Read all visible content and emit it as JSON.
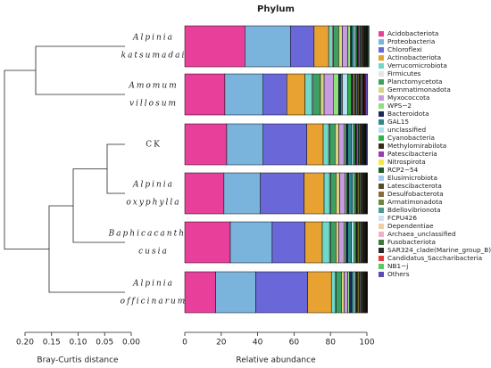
{
  "chart_data": [
    {
      "type": "stacked-barh",
      "title": "Phylum",
      "xlabel": "Relative abundance",
      "categories": [
        [
          "Alpinia",
          "katsumadai"
        ],
        [
          "Amomum",
          "villosum"
        ],
        [
          "CK"
        ],
        [
          "Alpinia",
          "oxyphylla"
        ],
        [
          "Baphicacanthus",
          "cusia"
        ],
        [
          "Alpinia",
          "officinarum"
        ]
      ],
      "xlim": [
        0,
        100
      ],
      "xticks": [
        0,
        20,
        40,
        60,
        80,
        100
      ],
      "series": [
        {
          "name": "Acidobacteriota",
          "color": "#e8409a",
          "values": [
            33,
            22,
            23,
            21.5,
            25,
            17
          ]
        },
        {
          "name": "Proteobacteria",
          "color": "#7ab4dc",
          "values": [
            25,
            21,
            20,
            20,
            23,
            22
          ]
        },
        {
          "name": "Chloroflexi",
          "color": "#6a68d8",
          "values": [
            13,
            13,
            24,
            24,
            18,
            28.5
          ]
        },
        {
          "name": "Actinobacteriota",
          "color": "#e8a232",
          "values": [
            8,
            10,
            9,
            11,
            9.5,
            13
          ]
        },
        {
          "name": "Verrucomicrobiota",
          "color": "#6fd9c9",
          "values": [
            2,
            4,
            3,
            3,
            4,
            2
          ]
        },
        {
          "name": "Firmicutes",
          "color": "#e6e6e6",
          "values": [
            0.5,
            0.5,
            0.5,
            0.5,
            0.5,
            0.5
          ]
        },
        {
          "name": "Planctomycetota",
          "color": "#3f9f62",
          "values": [
            3,
            4,
            3,
            3,
            3,
            3
          ]
        },
        {
          "name": "Gemmatimonadota",
          "color": "#d8d57c",
          "values": [
            2,
            2,
            2,
            2,
            1.5,
            1.5
          ]
        },
        {
          "name": "Myxococcota",
          "color": "#c79be0",
          "values": [
            3,
            5,
            3,
            3,
            3,
            2
          ]
        },
        {
          "name": "WPS−2",
          "color": "#8ee07e",
          "values": [
            1.5,
            3,
            1,
            1,
            1,
            1
          ]
        },
        {
          "name": "Bacteroidota",
          "color": "#1b2a5a",
          "values": [
            0.5,
            1,
            1,
            1,
            1,
            1
          ]
        },
        {
          "name": "GAL15",
          "color": "#2b8a8a",
          "values": [
            1,
            1,
            2,
            2,
            2,
            1
          ]
        },
        {
          "name": "unclassified",
          "color": "#b5e0f0",
          "values": [
            1,
            3,
            1,
            1,
            1.5,
            1
          ]
        },
        {
          "name": "Cyanobacteria",
          "color": "#2fb34a",
          "values": [
            1,
            2,
            1,
            1,
            1,
            0.5
          ]
        },
        {
          "name": "Methylomirabilota",
          "color": "#3a2a1a",
          "values": [
            0.5,
            0.6,
            0.5,
            0.5,
            0.5,
            0.5
          ]
        },
        {
          "name": "Patescibacteria",
          "color": "#9a3ab0",
          "values": [
            0.5,
            0.6,
            0.5,
            0.5,
            0.5,
            0.5
          ]
        },
        {
          "name": "Nitrospirota",
          "color": "#f2e84a",
          "values": [
            0.5,
            0.6,
            0.5,
            0.5,
            0.5,
            0.5
          ]
        },
        {
          "name": "RCP2−54",
          "color": "#1f5a2a",
          "values": [
            0.5,
            0.6,
            0.5,
            0.5,
            0.5,
            0.5
          ]
        },
        {
          "name": "Elusimicrobiota",
          "color": "#a0c8f0",
          "values": [
            0.5,
            0.6,
            0.5,
            0.5,
            0.5,
            0.5
          ]
        },
        {
          "name": "Latescibacterota",
          "color": "#5a4a2a",
          "values": [
            0.5,
            0.6,
            0.5,
            0.5,
            0.5,
            0.5
          ]
        },
        {
          "name": "Desulfobacterota",
          "color": "#8a6a3a",
          "values": [
            0.5,
            0.6,
            0.5,
            0.5,
            0.5,
            0.5
          ]
        },
        {
          "name": "Armatimonadota",
          "color": "#6a8a3a",
          "values": [
            0.3,
            0.4,
            0.3,
            0.3,
            0.3,
            0.3
          ]
        },
        {
          "name": "Bdellovibrionota",
          "color": "#4a9a9a",
          "values": [
            0.3,
            0.4,
            0.3,
            0.3,
            0.3,
            0.3
          ]
        },
        {
          "name": "FCPU426",
          "color": "#d0e0f8",
          "values": [
            0.3,
            0.4,
            0.3,
            0.3,
            0.3,
            0.3
          ]
        },
        {
          "name": "Dependentiae",
          "color": "#f0d0a0",
          "values": [
            0.3,
            0.4,
            0.3,
            0.3,
            0.3,
            0.3
          ]
        },
        {
          "name": "Archaea_unclassified",
          "color": "#f0b0c8",
          "values": [
            0.3,
            0.4,
            0.3,
            0.3,
            0.3,
            0.3
          ]
        },
        {
          "name": "Fusobacteriota",
          "color": "#3a7a3a",
          "values": [
            0.3,
            0.4,
            0.3,
            0.3,
            0.3,
            0.3
          ]
        },
        {
          "name": "SAR324_clade(Marine_group_B)",
          "color": "#2a2a2a",
          "values": [
            0.3,
            0.4,
            0.3,
            0.3,
            0.3,
            0.3
          ]
        },
        {
          "name": "Candidatus_Saccharibacteria",
          "color": "#e83a3a",
          "values": [
            0.2,
            0.4,
            0.3,
            0.3,
            0.3,
            0.3
          ]
        },
        {
          "name": "NB1−j",
          "color": "#5ac85a",
          "values": [
            0.5,
            0.4,
            0.3,
            0.3,
            0.3,
            0.3
          ]
        },
        {
          "name": "Others",
          "color": "#5a4ab8",
          "values": [
            0.4,
            1.1,
            0.6,
            0.1,
            0.1,
            0.1
          ]
        }
      ]
    },
    {
      "type": "dendrogram",
      "xlabel": "Bray-Curtis distance",
      "xlim": [
        0.2,
        0
      ],
      "xticks": [
        {
          "value": 0.2,
          "label": "0.20"
        },
        {
          "value": 0.15,
          "label": "0.15"
        },
        {
          "value": 0.1,
          "label": "0.10"
        },
        {
          "value": 0.05,
          "label": "0.05"
        },
        {
          "value": 0,
          "label": "0.00"
        }
      ]
    }
  ]
}
